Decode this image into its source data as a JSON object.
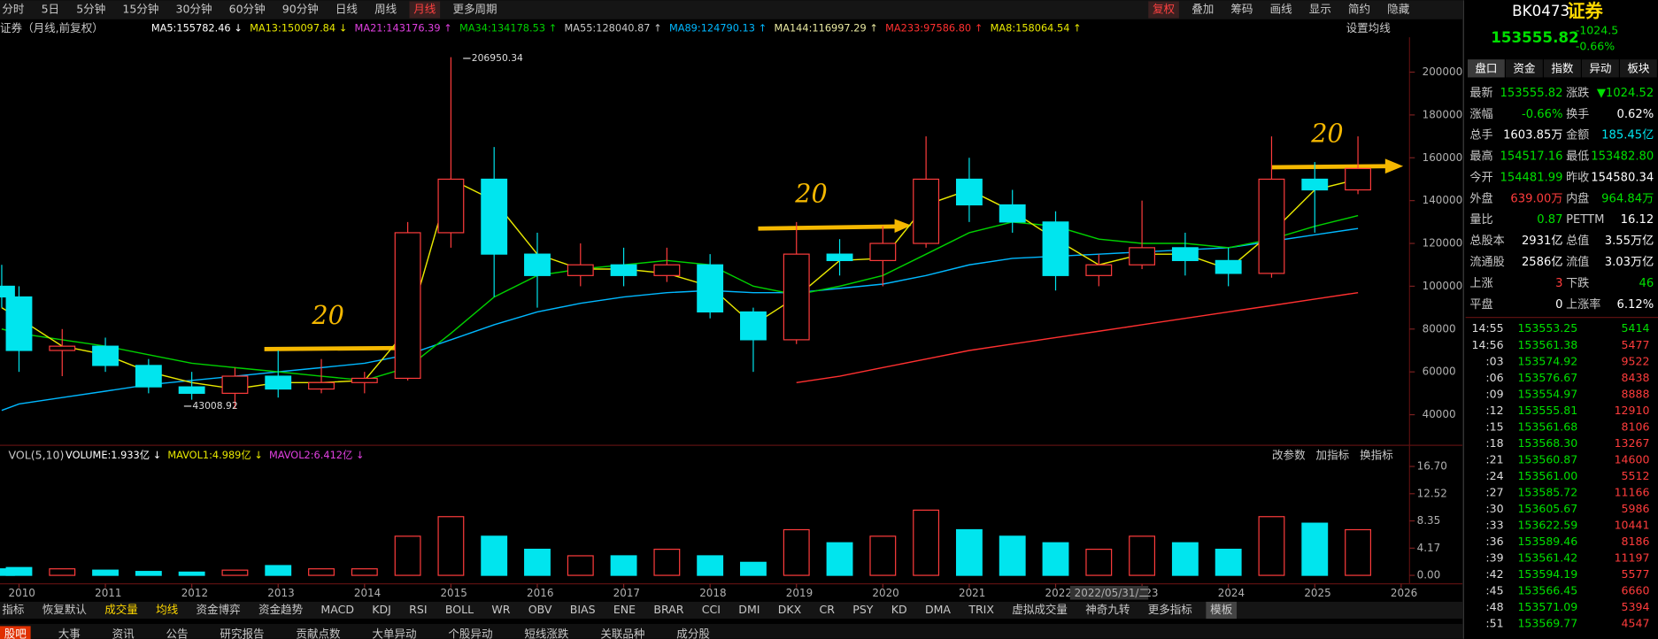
{
  "toolbar": {
    "periods": [
      "分时",
      "5日",
      "5分钟",
      "15分钟",
      "30分钟",
      "60分钟",
      "90分钟",
      "日线",
      "周线",
      "月线",
      "更多周期"
    ],
    "active_index": 9,
    "tools": [
      "复权",
      "叠加",
      "筹码",
      "画线",
      "显示",
      "简约",
      "隐藏"
    ]
  },
  "chart_data": {
    "type": "candlestick",
    "title": "证券（月线,前复权）",
    "ma_legend": [
      {
        "label": "MA5:155782.46 ↓",
        "color": "#ffffff"
      },
      {
        "label": "MA13:150097.84 ↓",
        "color": "#e8e800"
      },
      {
        "label": "MA21:143176.39 ↑",
        "color": "#e040e0"
      },
      {
        "label": "MA34:134178.53 ↑",
        "color": "#00d000"
      },
      {
        "label": "MA55:128040.87 ↑",
        "color": "#c8c8c8"
      },
      {
        "label": "MA89:124790.13 ↑",
        "color": "#00b8ff"
      },
      {
        "label": "MA144:116997.29 ↑",
        "color": "#e8e8a0"
      },
      {
        "label": "MA233:97586.80 ↑",
        "color": "#ff3030"
      },
      {
        "label": "MA8:158064.54 ↑",
        "color": "#e8e800"
      }
    ],
    "settings_label": "设置均线",
    "x": [
      2009.8,
      2010.0,
      2010.5,
      2011.0,
      2011.5,
      2012.0,
      2012.5,
      2013.0,
      2013.5,
      2014.0,
      2014.5,
      2015.0,
      2015.5,
      2016.0,
      2016.5,
      2017.0,
      2017.5,
      2018.0,
      2018.5,
      2019.0,
      2019.5,
      2020.0,
      2020.5,
      2021.0,
      2021.5,
      2022.0,
      2022.5,
      2023.0,
      2023.5,
      2024.0,
      2024.5,
      2025.0,
      2025.5
    ],
    "open": [
      100000,
      95000,
      70000,
      72000,
      63000,
      53000,
      50000,
      58000,
      52000,
      55000,
      57000,
      125000,
      150000,
      115000,
      105000,
      110000,
      105000,
      110000,
      88000,
      75000,
      115000,
      112000,
      120000,
      150000,
      138000,
      130000,
      105000,
      110000,
      118000,
      112000,
      106000,
      150000,
      145000
    ],
    "high": [
      110000,
      100000,
      80000,
      76000,
      66000,
      60000,
      62000,
      70000,
      66000,
      60000,
      130000,
      206950.34,
      165000,
      125000,
      120000,
      118000,
      118000,
      115000,
      90000,
      130000,
      122000,
      128000,
      170000,
      160000,
      145000,
      135000,
      115000,
      140000,
      125000,
      118000,
      170000,
      158000,
      170000
    ],
    "low": [
      90000,
      60000,
      58000,
      60000,
      50000,
      47000,
      43008.92,
      48000,
      50000,
      50000,
      56000,
      118000,
      95000,
      90000,
      100000,
      100000,
      102000,
      85000,
      60000,
      73000,
      105000,
      100000,
      118000,
      130000,
      125000,
      98000,
      100000,
      108000,
      105000,
      100000,
      104000,
      125000,
      143000
    ],
    "close": [
      95000,
      70000,
      72000,
      63000,
      53000,
      50000,
      58000,
      52000,
      55000,
      57000,
      125000,
      150000,
      115000,
      105000,
      110000,
      105000,
      110000,
      88000,
      75000,
      115000,
      112000,
      120000,
      150000,
      138000,
      130000,
      105000,
      110000,
      118000,
      112000,
      106000,
      150000,
      145000,
      155000
    ],
    "up_color": "#ff3c3c",
    "down_color": "#00e5ee",
    "series": [
      {
        "color": "#00b8ff",
        "values": [
          42000,
          45000,
          48000,
          51000,
          54000,
          56000,
          58000,
          60000,
          62000,
          64000,
          68000,
          75000,
          82000,
          88000,
          92000,
          95000,
          97000,
          98000,
          97000,
          97000,
          99000,
          101000,
          105000,
          110000,
          113000,
          114000,
          115000,
          116000,
          117000,
          118000,
          121000,
          124000,
          127000
        ]
      },
      {
        "color": "#00d000",
        "values": [
          80000,
          78000,
          75000,
          72000,
          68000,
          64000,
          62000,
          60000,
          58000,
          56000,
          62000,
          78000,
          95000,
          105000,
          108000,
          110000,
          112000,
          110000,
          100000,
          96000,
          100000,
          105000,
          115000,
          125000,
          130000,
          128000,
          122000,
          120000,
          120000,
          118000,
          122000,
          128000,
          133000
        ]
      },
      {
        "color": "#e8e800",
        "values": [
          90000,
          85000,
          72000,
          68000,
          60000,
          55000,
          52000,
          55000,
          55000,
          56000,
          80000,
          150000,
          140000,
          115000,
          108000,
          108000,
          106000,
          100000,
          82000,
          95000,
          112000,
          113000,
          138000,
          145000,
          135000,
          122000,
          110000,
          115000,
          115000,
          108000,
          125000,
          145000,
          150000
        ]
      },
      {
        "color": "#ff3030",
        "values": [
          null,
          null,
          null,
          null,
          null,
          null,
          null,
          null,
          null,
          null,
          null,
          null,
          null,
          null,
          null,
          null,
          null,
          null,
          null,
          55000,
          58000,
          62000,
          66000,
          70000,
          73000,
          76000,
          79000,
          82000,
          85000,
          88000,
          91000,
          94000,
          97000
        ]
      }
    ],
    "xlim": [
      2009.78,
      2026.06
    ],
    "xticks": [
      2010,
      2011,
      2012,
      2013,
      2014,
      2015,
      2016,
      2017,
      2018,
      2019,
      2020,
      2021,
      2022,
      2023,
      2024,
      2025,
      2026
    ],
    "ylim": [
      26200,
      216300
    ],
    "yticks": [
      200000,
      180000,
      160000,
      140000,
      120000,
      100000,
      80000,
      60000,
      40000
    ],
    "annotations": [
      {
        "text": "206950.34"
      },
      {
        "text": "43008.92"
      },
      {
        "text": "20"
      },
      {
        "text": "20"
      },
      {
        "text": "20"
      }
    ],
    "cursor_date": "2022/05/31/二",
    "volume": {
      "title": "VOL(5,10)",
      "legend": [
        {
          "label": "VOLUME:1.933亿 ↓",
          "color": "#ffffff"
        },
        {
          "label": "MAVOL1:4.989亿 ↓",
          "color": "#e8e800"
        },
        {
          "label": "MAVOL2:6.412亿 ↓",
          "color": "#e040e0"
        }
      ],
      "buttons": [
        "改参数",
        "加指标",
        "换指标"
      ],
      "values": [
        1,
        1.2,
        1,
        0.8,
        0.6,
        0.5,
        0.8,
        1.5,
        1,
        1,
        6,
        9,
        6,
        4,
        3,
        3,
        4,
        3,
        2,
        7,
        5,
        6,
        10,
        7,
        6,
        5,
        4,
        6,
        5,
        4,
        9,
        8,
        7
      ],
      "ylim": [
        0,
        18.4
      ],
      "yticks": [
        {
          "value": 16.7,
          "label": "16.70"
        },
        {
          "value": 12.52,
          "label": "12.52"
        },
        {
          "value": 8.35,
          "label": "8.35"
        },
        {
          "value": 4.17,
          "label": "4.17"
        },
        {
          "value": 0,
          "label": "0.00"
        }
      ]
    }
  },
  "quote": {
    "code": "BK0473",
    "name": "证券",
    "price": "153555.82",
    "change": "-1024.5",
    "pct": "-0.66%",
    "tabs": [
      "盘口",
      "资金",
      "指数",
      "异动",
      "板块"
    ],
    "stats": [
      {
        "cells": [
          "最新",
          "153555.82",
          "涨跌",
          "▼1024.52"
        ],
        "colors": [
          "#00e000",
          "#00e000"
        ]
      },
      {
        "cells": [
          "涨幅",
          "-0.66%",
          "换手",
          "0.62%"
        ],
        "colors": [
          "#00e000",
          "#ffffff"
        ]
      },
      {
        "cells": [
          "总手",
          "1603.85万",
          "金额",
          "185.45亿"
        ],
        "colors": [
          "#ffffff",
          "#00e5ee"
        ]
      },
      {
        "cells": [
          "最高",
          "154517.16",
          "最低",
          "153482.80"
        ],
        "colors": [
          "#00e000",
          "#00e000"
        ]
      },
      {
        "cells": [
          "今开",
          "154481.99",
          "昨收",
          "154580.34"
        ],
        "colors": [
          "#00e000",
          "#ffffff"
        ]
      },
      {
        "cells": [
          "外盘",
          "639.00万",
          "内盘",
          "964.84万"
        ],
        "colors": [
          "#ff3c3c",
          "#00e000"
        ]
      },
      {
        "cells": [
          "量比",
          "0.87",
          "PETTM",
          "16.12"
        ],
        "colors": [
          "#00e000",
          "#ffffff"
        ]
      },
      {
        "cells": [
          "总股本",
          "2931亿",
          "总值",
          "3.55万亿"
        ],
        "colors": [
          "#ffffff",
          "#ffffff"
        ]
      },
      {
        "cells": [
          "流通股",
          "2586亿",
          "流值",
          "3.03万亿"
        ],
        "colors": [
          "#ffffff",
          "#ffffff"
        ]
      },
      {
        "cells": [
          "上涨",
          "3",
          "下跌",
          "46"
        ],
        "colors": [
          "#ff3c3c",
          "#00e000"
        ]
      },
      {
        "cells": [
          "平盘",
          "0",
          "上涨率",
          "6.12%"
        ],
        "colors": [
          "#ffffff",
          "#ffffff"
        ]
      }
    ],
    "ticks": [
      [
        "14:55",
        "153553.25",
        "5414"
      ],
      [
        "14:56",
        "153561.38",
        "5477"
      ],
      [
        ":03",
        "153574.92",
        "9522"
      ],
      [
        ":06",
        "153576.67",
        "8438"
      ],
      [
        ":09",
        "153554.97",
        "8888"
      ],
      [
        ":12",
        "153555.81",
        "12910"
      ],
      [
        ":15",
        "153561.68",
        "8106"
      ],
      [
        ":18",
        "153568.30",
        "13267"
      ],
      [
        ":21",
        "153560.87",
        "14600"
      ],
      [
        ":24",
        "153561.00",
        "5512"
      ],
      [
        ":27",
        "153585.72",
        "11166"
      ],
      [
        ":30",
        "153605.67",
        "5986"
      ],
      [
        ":33",
        "153622.59",
        "10441"
      ],
      [
        ":36",
        "153589.46",
        "8186"
      ],
      [
        ":39",
        "153561.42",
        "11197"
      ],
      [
        ":42",
        "153594.19",
        "5577"
      ],
      [
        ":45",
        "153566.45",
        "6660"
      ],
      [
        ":48",
        "153571.09",
        "5394"
      ],
      [
        ":51",
        "153569.77",
        "4547"
      ]
    ]
  },
  "indicator_tabs": {
    "items": [
      "指标",
      "恢复默认",
      "成交量",
      "均线",
      "资金博弈",
      "资金趋势",
      "MACD",
      "KDJ",
      "RSI",
      "BOLL",
      "WR",
      "OBV",
      "BIAS",
      "ENE",
      "BRAR",
      "CCI",
      "DMI",
      "DKX",
      "CR",
      "PSY",
      "KD",
      "DMA",
      "TRIX",
      "虚拟成交量",
      "神奇九转",
      "更多指标",
      "模板"
    ],
    "highlight": [
      2,
      3
    ]
  },
  "bottom_tabs": [
    "股吧",
    "大事",
    "资讯",
    "公告",
    "研究报告",
    "贡献点数",
    "大单异动",
    "个股异动",
    "短线涨跌",
    "关联品种",
    "成分股"
  ]
}
